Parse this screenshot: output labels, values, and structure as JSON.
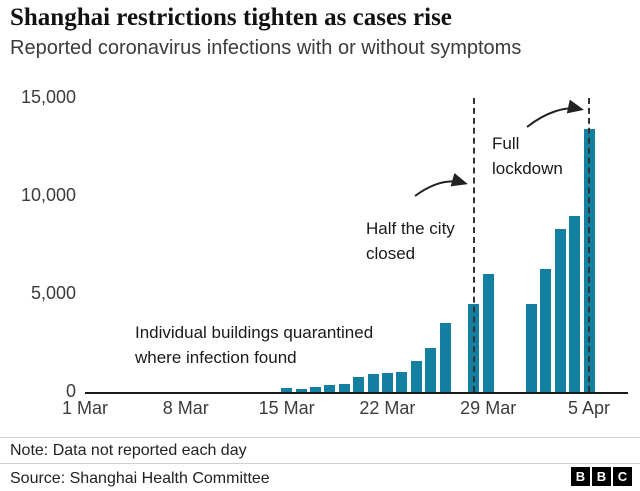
{
  "chart_data": {
    "type": "bar",
    "title": "Shanghai restrictions tighten as cases rise",
    "subtitle": "Reported coronavirus infections with or without symptoms",
    "xlabel": "",
    "ylabel": "",
    "ylim": [
      0,
      15000
    ],
    "x_days_total": 35,
    "grid": false,
    "legend": "none",
    "bar_color": "#1380A1",
    "axis_color": "#1a1a1a",
    "x_ticks": [
      {
        "day": 0,
        "label": "1 Mar"
      },
      {
        "day": 7,
        "label": "8 Mar"
      },
      {
        "day": 14,
        "label": "15 Mar"
      },
      {
        "day": 21,
        "label": "22 Mar"
      },
      {
        "day": 28,
        "label": "29 Mar"
      },
      {
        "day": 35,
        "label": "5 Apr"
      }
    ],
    "y_ticks": [
      {
        "value": 0,
        "label": "0"
      },
      {
        "value": 5000,
        "label": "5,000"
      },
      {
        "value": 10000,
        "label": "10,000"
      },
      {
        "value": 15000,
        "label": "15,000"
      }
    ],
    "points": [
      {
        "date": "15 Mar",
        "day": 14,
        "value": 200
      },
      {
        "date": "16 Mar",
        "day": 15,
        "value": 150
      },
      {
        "date": "17 Mar",
        "day": 16,
        "value": 260
      },
      {
        "date": "18 Mar",
        "day": 17,
        "value": 370
      },
      {
        "date": "19 Mar",
        "day": 18,
        "value": 420
      },
      {
        "date": "20 Mar",
        "day": 19,
        "value": 760
      },
      {
        "date": "21 Mar",
        "day": 20,
        "value": 900
      },
      {
        "date": "22 Mar",
        "day": 21,
        "value": 980
      },
      {
        "date": "23 Mar",
        "day": 22,
        "value": 1000
      },
      {
        "date": "24 Mar",
        "day": 23,
        "value": 1600
      },
      {
        "date": "25 Mar",
        "day": 24,
        "value": 2270
      },
      {
        "date": "26 Mar",
        "day": 25,
        "value": 3500
      },
      {
        "date": "28 Mar",
        "day": 27,
        "value": 4500
      },
      {
        "date": "29 Mar",
        "day": 28,
        "value": 6000
      },
      {
        "date": "1 Apr",
        "day": 31,
        "value": 4500
      },
      {
        "date": "2 Apr",
        "day": 32,
        "value": 6300
      },
      {
        "date": "3 Apr",
        "day": 33,
        "value": 8300
      },
      {
        "date": "4 Apr",
        "day": 34,
        "value": 9000
      },
      {
        "date": "5 Apr",
        "day": 35,
        "value": 13400
      }
    ],
    "events": [
      {
        "day": 27,
        "label": "Half the city closed"
      },
      {
        "day": 35,
        "label": "Full lockdown"
      }
    ],
    "annotations": {
      "buildings": [
        "Individual buildings quarantined",
        "where infection found"
      ],
      "half_city": [
        "Half the city",
        "closed"
      ],
      "full_lockdown": [
        "Full",
        "lockdown"
      ]
    }
  },
  "footer": {
    "note": "Note: Data not reported each day",
    "source": "Source: Shanghai Health Committee",
    "logo": [
      "B",
      "B",
      "C"
    ]
  }
}
